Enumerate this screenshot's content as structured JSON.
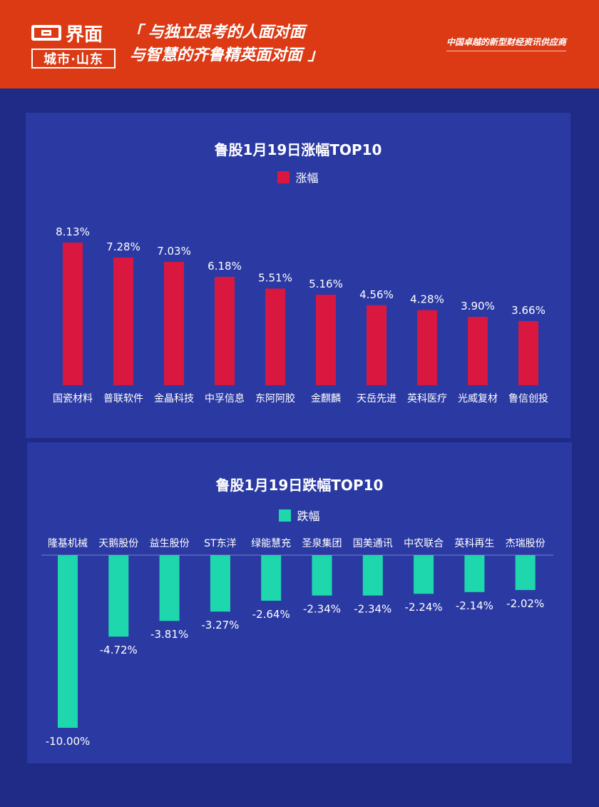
{
  "header": {
    "logo_top": "界面",
    "logo_bottom": "城市·山东",
    "slogan_line1": "「 与独立思考的人面对面",
    "slogan_line2": "与智慧的齐鲁精英面对面 」",
    "tagline": "中国卓越的新型财经资讯供应商"
  },
  "colors": {
    "background": "#1f2b86",
    "panel": "#2b3aa3",
    "header": "#dc3a14",
    "gain_bar": "#d9173f",
    "loss_bar": "#1fd7ad"
  },
  "chart_data": [
    {
      "type": "bar",
      "title": "鲁股1月19日涨幅TOP10",
      "series": [
        {
          "name": "涨幅",
          "values": [
            8.13,
            7.28,
            7.03,
            6.18,
            5.51,
            5.16,
            4.56,
            4.28,
            3.9,
            3.66
          ]
        }
      ],
      "categories": [
        "国瓷材料",
        "普联软件",
        "金晶科技",
        "中孚信息",
        "东阿阿胶",
        "金麒麟",
        "天岳先进",
        "英科医疗",
        "光威复材",
        "鲁信创投"
      ],
      "value_labels": [
        "8.13%",
        "7.28%",
        "7.03%",
        "6.18%",
        "5.51%",
        "5.16%",
        "4.56%",
        "4.28%",
        "3.90%",
        "3.66%"
      ],
      "legend": "top-center",
      "grid": false
    },
    {
      "type": "bar",
      "title": "鲁股1月19日跌幅TOP10",
      "series": [
        {
          "name": "跌幅",
          "values": [
            -10.0,
            -4.72,
            -3.81,
            -3.27,
            -2.64,
            -2.34,
            -2.34,
            -2.24,
            -2.14,
            -2.02
          ]
        }
      ],
      "categories": [
        "隆基机械",
        "天鹅股份",
        "益生股份",
        "ST东洋",
        "绿能慧充",
        "圣泉集团",
        "国美通讯",
        "中农联合",
        "英科再生",
        "杰瑞股份"
      ],
      "value_labels": [
        "-10.00%",
        "-4.72%",
        "-3.81%",
        "-3.27%",
        "-2.64%",
        "-2.34%",
        "-2.34%",
        "-2.24%",
        "-2.14%",
        "-2.02%"
      ],
      "legend": "top-center",
      "grid": false
    }
  ]
}
